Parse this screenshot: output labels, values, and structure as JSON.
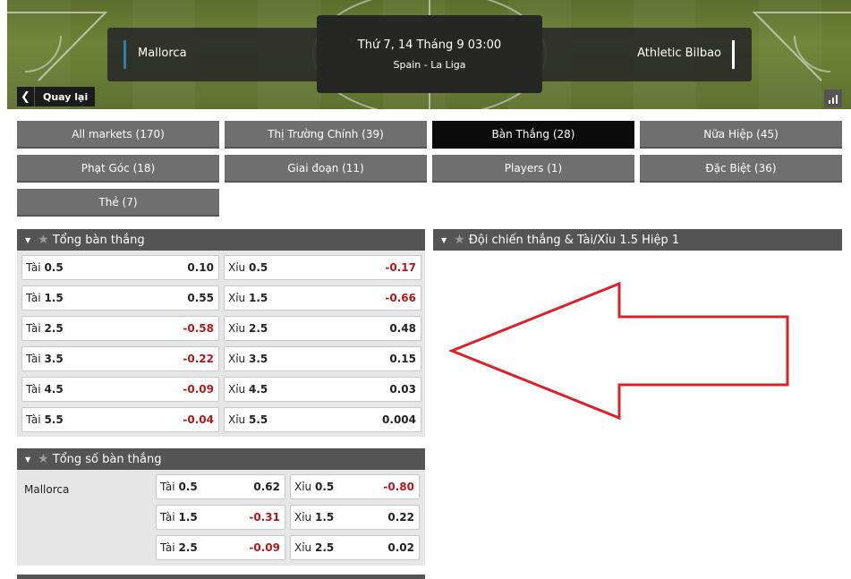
{
  "header": {
    "home_team": "Mallorca",
    "away_team": "Athletic Bilbao",
    "date_time": "Thứ 7, 14 Tháng 9 03:00",
    "league": "Spain - La Liga",
    "back_label": "Quay lại",
    "back_icon": "chevron-left-icon",
    "stats_icon": "bar-chart-icon",
    "colors": {
      "home_accent": "#2f7ea6",
      "away_accent": "#ffffff"
    }
  },
  "tabs": [
    {
      "label": "All markets (170)"
    },
    {
      "label": "Thị Trường Chính (39)"
    },
    {
      "label": "Bàn Thắng (28)",
      "active": true
    },
    {
      "label": "Nữa Hiệp (45)"
    },
    {
      "label": "Phạt Góc (18)"
    },
    {
      "label": "Giai đoạn (11)"
    },
    {
      "label": "Players (1)"
    },
    {
      "label": "Đặc Biệt (36)"
    },
    {
      "label": "Thẻ (7)"
    }
  ],
  "total_goals": {
    "title": "Tổng bàn thắng",
    "rows": [
      {
        "over_label": "Tài",
        "over_line": "0.5",
        "over_odd": "0.10",
        "under_label": "Xỉu",
        "under_line": "0.5",
        "under_odd": "-0.17"
      },
      {
        "over_label": "Tài",
        "over_line": "1.5",
        "over_odd": "0.55",
        "under_label": "Xỉu",
        "under_line": "1.5",
        "under_odd": "-0.66"
      },
      {
        "over_label": "Tài",
        "over_line": "2.5",
        "over_odd": "-0.58",
        "under_label": "Xỉu",
        "under_line": "2.5",
        "under_odd": "0.48"
      },
      {
        "over_label": "Tài",
        "over_line": "3.5",
        "over_odd": "-0.22",
        "under_label": "Xỉu",
        "under_line": "3.5",
        "under_odd": "0.15"
      },
      {
        "over_label": "Tài",
        "over_line": "4.5",
        "over_odd": "-0.09",
        "under_label": "Xỉu",
        "under_line": "4.5",
        "under_odd": "0.03"
      },
      {
        "over_label": "Tài",
        "over_line": "5.5",
        "over_odd": "-0.04",
        "under_label": "Xỉu",
        "under_line": "5.5",
        "under_odd": "0.004"
      }
    ]
  },
  "team_total_goals": {
    "title": "Tổng số bàn thắng",
    "team": "Mallorca",
    "rows": [
      {
        "over_label": "Tài",
        "over_line": "0.5",
        "over_odd": "0.62",
        "under_label": "Xỉu",
        "under_line": "0.5",
        "under_odd": "-0.80"
      },
      {
        "over_label": "Tài",
        "over_line": "1.5",
        "over_odd": "-0.31",
        "under_label": "Xỉu",
        "under_line": "1.5",
        "under_odd": "0.22"
      },
      {
        "over_label": "Tài",
        "over_line": "2.5",
        "over_odd": "-0.09",
        "under_label": "Xỉu",
        "under_line": "2.5",
        "under_odd": "0.02"
      }
    ]
  },
  "right_panel": {
    "title": "Đội chiến thắng & Tài/Xỉu 1.5 Hiệp 1"
  },
  "annotation": {
    "arrow_color": "#d9232a",
    "arrow_icon": "left-arrow-annotation"
  },
  "colors": {
    "negative_odd": "#b01a1a",
    "tab_bg": "#6f6f6f",
    "tab_active_bg": "#0b0b0b",
    "panel_header_bg": "#555555"
  }
}
